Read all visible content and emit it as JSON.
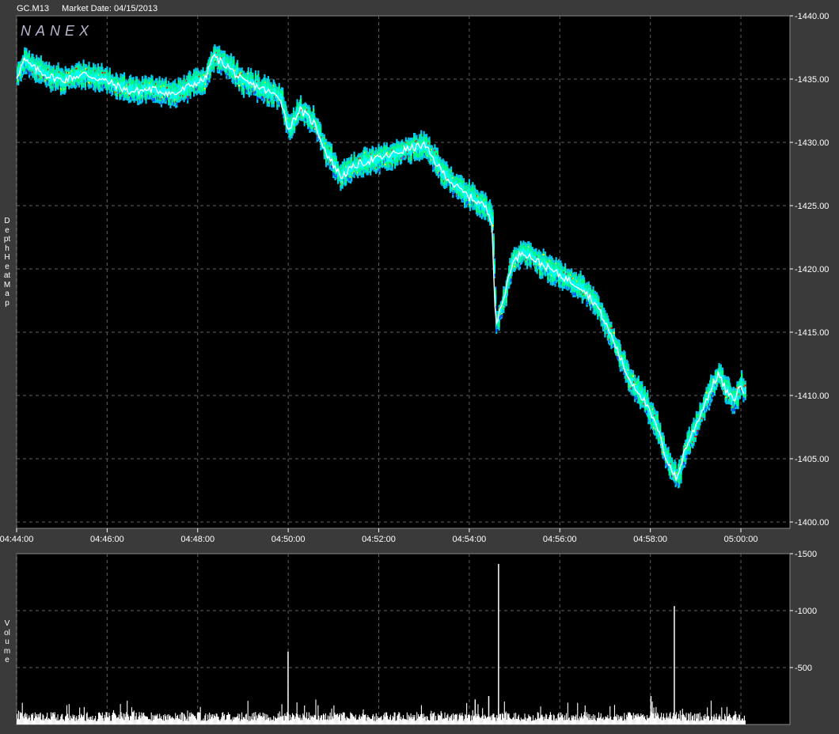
{
  "header": {
    "symbol": "GC.M13",
    "market_date": "Market Date: 04/15/2013"
  },
  "brand": "NANEX",
  "panels": {
    "price_label": "Depth Heat Map",
    "volume_label": "Volume"
  },
  "colors": {
    "background": "#3a3a3a",
    "plot_bg": "#000000",
    "grid": "#5f5f5f",
    "price_line": "#ffffff",
    "heat": [
      "#00c8f0",
      "#00ff80",
      "#ffff00",
      "#ff0000",
      "#0050ff",
      "#00ffff"
    ]
  },
  "chart_data": [
    {
      "type": "line",
      "title": "",
      "xlabel": "",
      "ylabel": "",
      "grid": true,
      "x_ticks": [
        "04:44:00",
        "04:46:00",
        "04:48:00",
        "04:50:00",
        "04:52:00",
        "04:54:00",
        "04:56:00",
        "04:58:00",
        "05:00:00"
      ],
      "y_ticks": [
        "1400.00",
        "1405.00",
        "1410.00",
        "1415.00",
        "1420.00",
        "1425.00",
        "1430.00",
        "1435.00",
        "1440.00"
      ],
      "xlim": [
        "04:44:00",
        "05:01:05"
      ],
      "ylim": [
        1399.5,
        1440.0
      ],
      "series": [
        {
          "values": [
            [
              "04:44:00",
              1435.2
            ],
            [
              "04:44:10",
              1436.5
            ],
            [
              "04:44:20",
              1436.0
            ],
            [
              "04:44:40",
              1435.3
            ],
            [
              "04:45:00",
              1434.9
            ],
            [
              "04:45:30",
              1435.4
            ],
            [
              "04:46:00",
              1434.8
            ],
            [
              "04:46:30",
              1434.0
            ],
            [
              "04:47:00",
              1434.2
            ],
            [
              "04:47:30",
              1433.8
            ],
            [
              "04:47:50",
              1434.5
            ],
            [
              "04:48:10",
              1435.0
            ],
            [
              "04:48:20",
              1436.8
            ],
            [
              "04:48:40",
              1436.0
            ],
            [
              "04:49:00",
              1434.8
            ],
            [
              "04:49:20",
              1434.4
            ],
            [
              "04:49:50",
              1433.5
            ],
            [
              "04:50:00",
              1431.0
            ],
            [
              "04:50:15",
              1432.6
            ],
            [
              "04:50:35",
              1431.5
            ],
            [
              "04:50:50",
              1429.2
            ],
            [
              "04:51:10",
              1427.3
            ],
            [
              "04:51:30",
              1428.2
            ],
            [
              "04:51:50",
              1428.6
            ],
            [
              "04:52:10",
              1428.9
            ],
            [
              "04:52:40",
              1429.5
            ],
            [
              "04:53:00",
              1429.8
            ],
            [
              "04:53:20",
              1428.0
            ],
            [
              "04:53:40",
              1426.6
            ],
            [
              "04:54:00",
              1425.7
            ],
            [
              "04:54:20",
              1425.0
            ],
            [
              "04:54:30",
              1423.8
            ],
            [
              "04:54:35",
              1415.5
            ],
            [
              "04:54:45",
              1417.5
            ],
            [
              "04:54:55",
              1420.2
            ],
            [
              "04:55:10",
              1421.4
            ],
            [
              "04:55:30",
              1420.6
            ],
            [
              "04:56:00",
              1419.5
            ],
            [
              "04:56:30",
              1418.5
            ],
            [
              "04:56:50",
              1417.0
            ],
            [
              "04:57:10",
              1414.5
            ],
            [
              "04:57:30",
              1411.5
            ],
            [
              "04:57:50",
              1409.8
            ],
            [
              "04:58:10",
              1407.3
            ],
            [
              "04:58:20",
              1405.2
            ],
            [
              "04:58:35",
              1403.3
            ],
            [
              "04:58:45",
              1405.6
            ],
            [
              "04:59:00",
              1407.6
            ],
            [
              "04:59:15",
              1409.8
            ],
            [
              "04:59:30",
              1411.7
            ],
            [
              "04:59:40",
              1410.4
            ],
            [
              "04:59:50",
              1409.6
            ],
            [
              "05:00:00",
              1410.8
            ],
            [
              "05:00:05",
              1410.2
            ]
          ]
        }
      ]
    },
    {
      "type": "bar",
      "title": "",
      "xlabel": "",
      "ylabel": "",
      "grid": true,
      "y_ticks": [
        "500",
        "1000",
        "1500"
      ],
      "ylim": [
        0,
        1500
      ],
      "x_ticks": [
        "04:44:00",
        "04:46:00",
        "04:48:00",
        "04:50:00",
        "04:52:00",
        "04:54:00",
        "04:56:00",
        "04:58:00",
        "05:00:00"
      ],
      "xlim": [
        "04:44:00",
        "05:01:05"
      ],
      "spikes": [
        {
          "x": "04:49:59",
          "value": 640
        },
        {
          "x": "04:54:38",
          "value": 1410
        },
        {
          "x": "04:58:31",
          "value": 1040
        },
        {
          "x": "04:58:00",
          "value": 250
        },
        {
          "x": "04:54:07",
          "value": 220
        },
        {
          "x": "04:54:25",
          "value": 250
        }
      ],
      "baseline_typical": [
        30,
        110
      ]
    }
  ]
}
